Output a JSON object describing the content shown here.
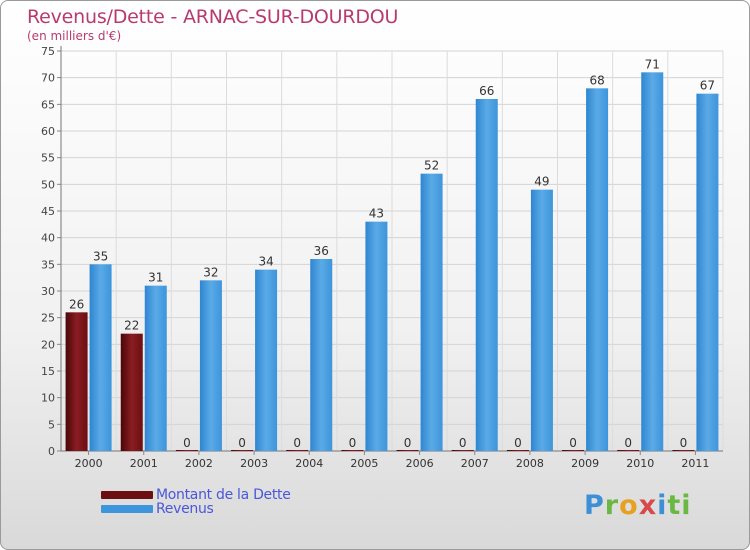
{
  "header": {
    "title": "Revenus/Dette - ARNAC-SUR-DOURDOU",
    "subtitle": "(en milliers d'€)"
  },
  "legend": [
    {
      "label": "Montant de la Dette",
      "color": "#6b0f12"
    },
    {
      "label": "Revenus",
      "color": "#3d95dc"
    }
  ],
  "logo": {
    "text": "Proxiti",
    "l1": "P",
    "l2": "r",
    "l3": "o",
    "l4": "x",
    "l5": "i",
    "l6": "ti"
  },
  "chart_data": {
    "type": "bar",
    "title": "Revenus/Dette - ARNAC-SUR-DOURDOU",
    "subtitle": "(en milliers d'€)",
    "categories": [
      "2000",
      "2001",
      "2002",
      "2003",
      "2004",
      "2005",
      "2006",
      "2007",
      "2008",
      "2009",
      "2010",
      "2011"
    ],
    "series": [
      {
        "name": "Montant de la Dette",
        "color": "#6b0f12",
        "values": [
          26,
          22,
          0,
          0,
          0,
          0,
          0,
          0,
          0,
          0,
          0,
          0
        ]
      },
      {
        "name": "Revenus",
        "color": "#3d95dc",
        "values": [
          35,
          31,
          32,
          34,
          36,
          43,
          52,
          66,
          49,
          68,
          71,
          67
        ]
      }
    ],
    "ylim": [
      0,
      75
    ],
    "yticks": [
      0,
      5,
      10,
      15,
      20,
      25,
      30,
      35,
      40,
      45,
      50,
      55,
      60,
      65,
      70,
      75
    ],
    "grid": true,
    "legend_position": "bottom-left"
  }
}
